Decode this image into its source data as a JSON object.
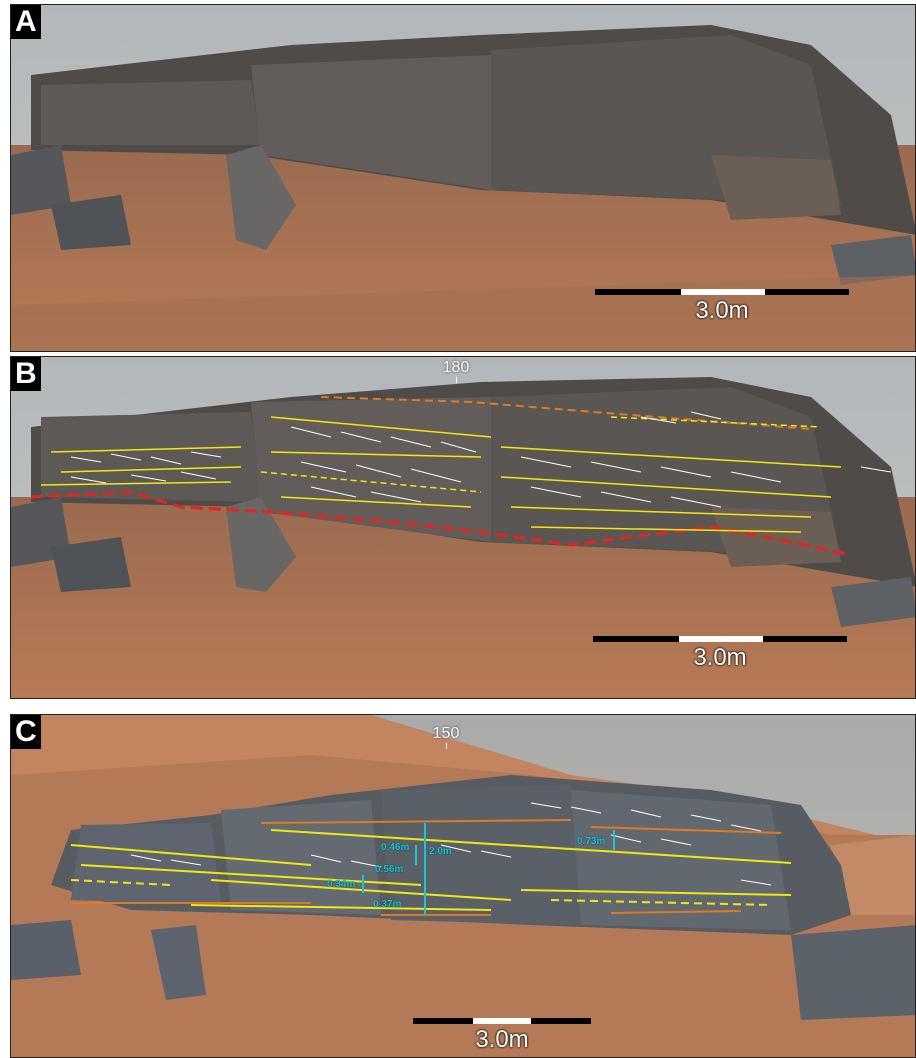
{
  "panels": {
    "a": {
      "letter": "A",
      "scale_label": "3.0m"
    },
    "b": {
      "letter": "B",
      "scale_label": "3.0m",
      "azimuth": "180"
    },
    "c": {
      "letter": "C",
      "scale_label": "3.0m",
      "azimuth": "150",
      "measurements": [
        "0.46m",
        "2.0m",
        "0.56m",
        "0.34m",
        "0.37m",
        "0.73m"
      ]
    }
  },
  "colors": {
    "sky": "#b7bbbd",
    "rock_gray": "#5d5c5c",
    "regolith": "#b27552",
    "annotation_yellow": "#f2e60f",
    "annotation_white": "#ffffff",
    "basal_contact_red": "#e4241f",
    "upper_contact_orange": "#e07a1f",
    "measure_cyan": "#19c6d6"
  }
}
